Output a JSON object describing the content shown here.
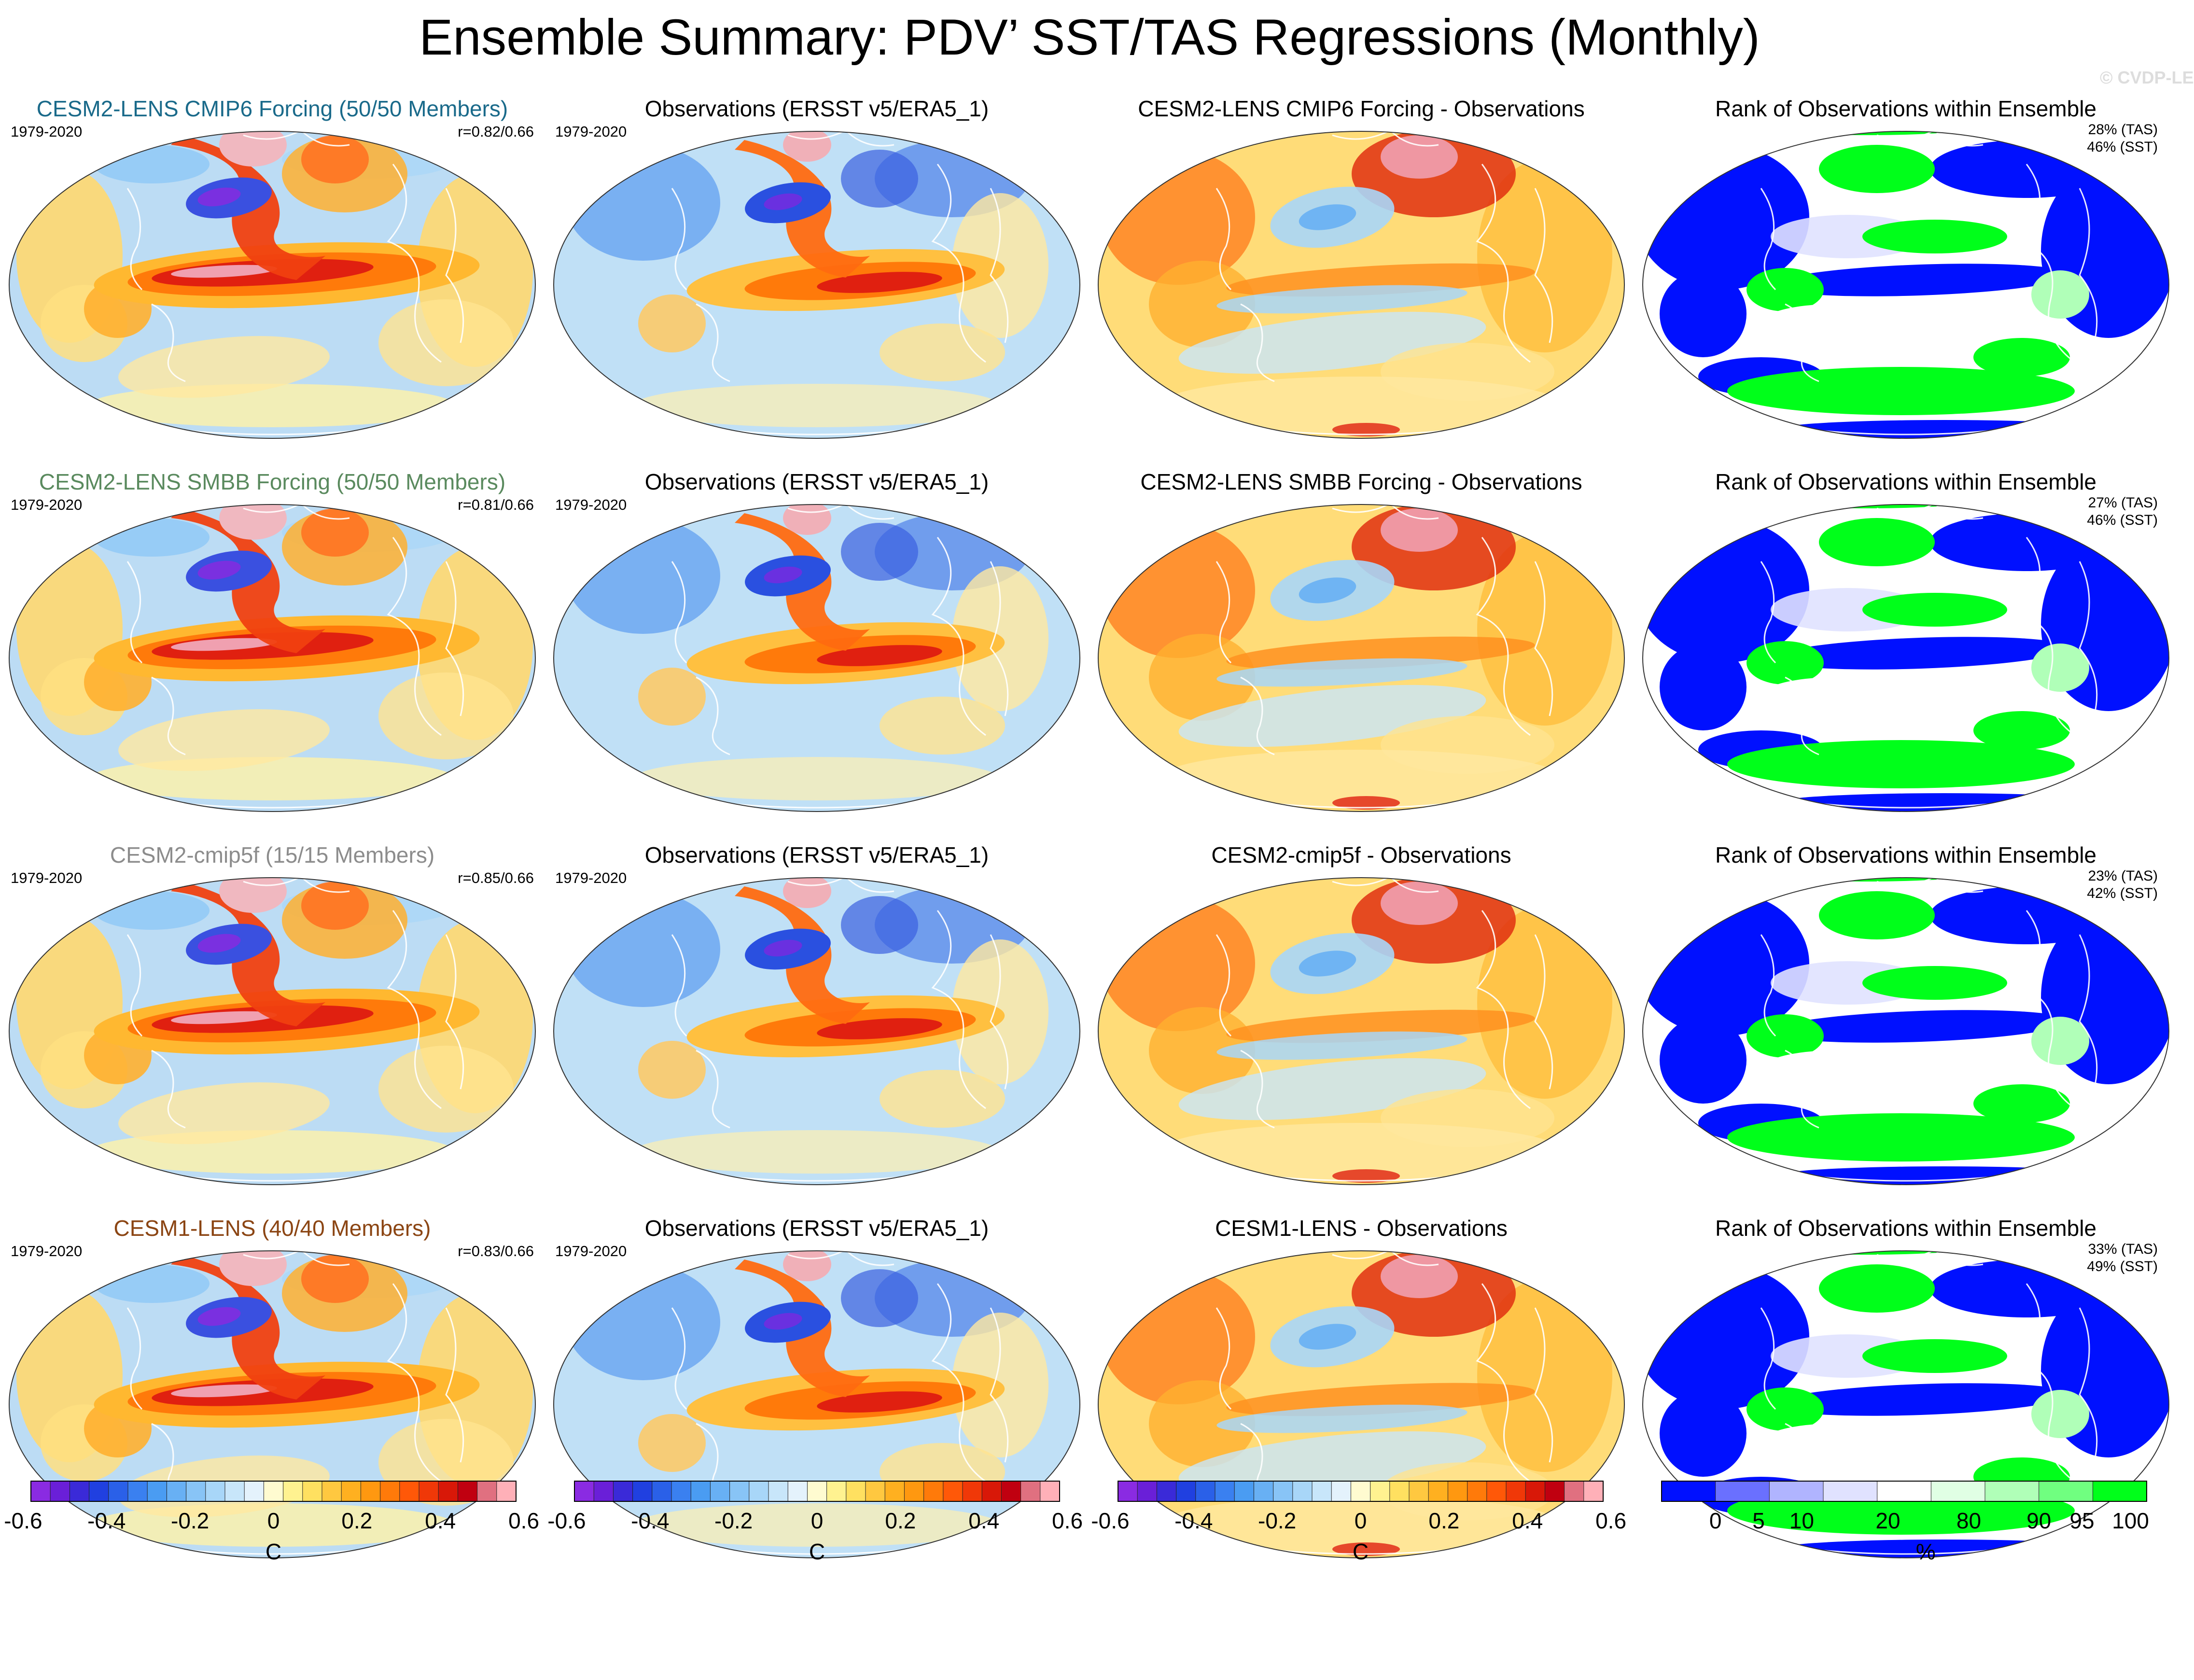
{
  "title": "Ensemble Summary: PDV’ SST/TAS Regressions (Monthly)",
  "watermark": "© CVDP-LE",
  "rows": [
    {
      "ensemble_title": "CESM2-LENS CMIP6 Forcing (50/50 Members)",
      "ensemble_color": "#1a6a8a",
      "period": "1979-2020",
      "pattern_corr": "r=0.82/0.66",
      "obs_title": "Observations (ERSST v5/ERA5_1)",
      "obs_period": "1979-2020",
      "diff_title": "CESM2-LENS CMIP6 Forcing - Observations",
      "rank_title": "Rank of Observations within Ensemble",
      "rank_tas": "28% (TAS)",
      "rank_sst": "46% (SST)"
    },
    {
      "ensemble_title": "CESM2-LENS SMBB Forcing (50/50 Members)",
      "ensemble_color": "#5a8a5e",
      "period": "1979-2020",
      "pattern_corr": "r=0.81/0.66",
      "obs_title": "Observations (ERSST v5/ERA5_1)",
      "obs_period": "1979-2020",
      "diff_title": "CESM2-LENS SMBB Forcing - Observations",
      "rank_title": "Rank of Observations within Ensemble",
      "rank_tas": "27% (TAS)",
      "rank_sst": "46% (SST)"
    },
    {
      "ensemble_title": "CESM2-cmip5f (15/15 Members)",
      "ensemble_color": "#8c8c8c",
      "period": "1979-2020",
      "pattern_corr": "r=0.85/0.66",
      "obs_title": "Observations (ERSST v5/ERA5_1)",
      "obs_period": "1979-2020",
      "diff_title": "CESM2-cmip5f - Observations",
      "rank_title": "Rank of Observations within Ensemble",
      "rank_tas": "23% (TAS)",
      "rank_sst": "42% (SST)"
    },
    {
      "ensemble_title": "CESM1-LENS (40/40 Members)",
      "ensemble_color": "#8b4513",
      "period": "1979-2020",
      "pattern_corr": "r=0.83/0.66",
      "obs_title": "Observations (ERSST v5/ERA5_1)",
      "obs_period": "1979-2020",
      "diff_title": "CESM1-LENS - Observations",
      "rank_title": "Rank of Observations within Ensemble",
      "rank_tas": "33% (TAS)",
      "rank_sst": "49% (SST)"
    }
  ],
  "temperature_colorbar": {
    "unit": "C",
    "tick_labels": [
      "-0.6",
      "-0.4",
      "-0.2",
      "0",
      "0.2",
      "0.4",
      "0.6"
    ],
    "colors": [
      "#8a2be2",
      "#6a1fd8",
      "#3a2ad8",
      "#2040e0",
      "#2a60e8",
      "#3a80f0",
      "#4a9cf2",
      "#68b0f4",
      "#88c4f6",
      "#a8d6f8",
      "#c8e6fa",
      "#e4f2fc",
      "#fffbd0",
      "#fff290",
      "#ffe060",
      "#ffc840",
      "#ffb020",
      "#ff9810",
      "#ff7a0a",
      "#ff5808",
      "#f03808",
      "#d81808",
      "#c00010",
      "#e07080",
      "#ffb0b8"
    ]
  },
  "rank_colorbar": {
    "unit": "%",
    "tick_labels": [
      "0",
      "5",
      "10",
      "20",
      "80",
      "90",
      "95",
      "100"
    ],
    "colors": [
      "#0010ff",
      "#6a70ff",
      "#b0b4ff",
      "#e0e2ff",
      "#ffffff",
      "#e0ffe4",
      "#b0ffb8",
      "#70ff80",
      "#00ff1a"
    ]
  }
}
